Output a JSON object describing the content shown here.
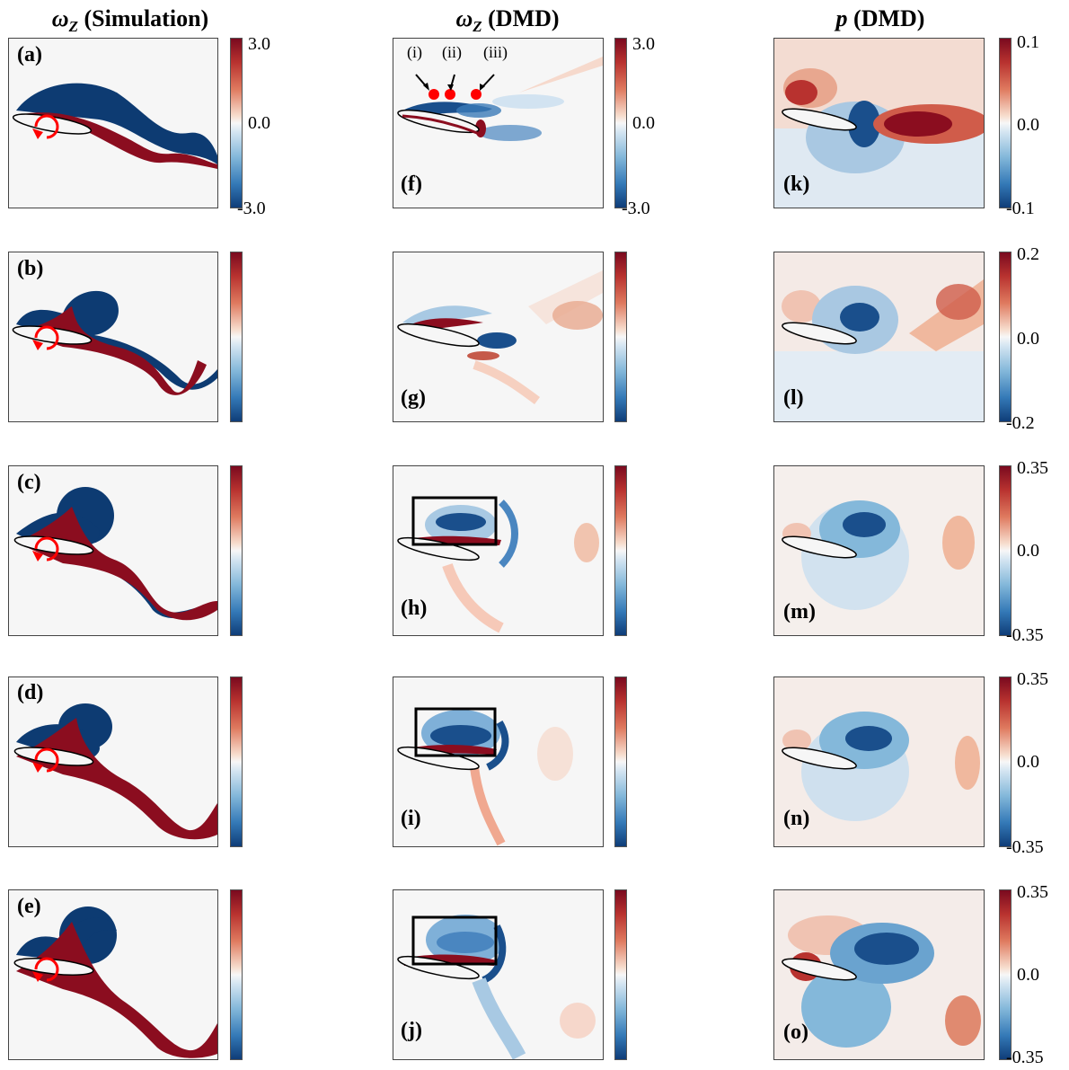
{
  "titles": {
    "col1": {
      "symbol": "ω",
      "sub": "Z",
      "text": " (Simulation)"
    },
    "col2": {
      "symbol": "ω",
      "sub": "Z",
      "text": " (DMD)"
    },
    "col3": {
      "symbol": "p",
      "text": " (DMD)"
    }
  },
  "panel_labels": {
    "a": "(a)",
    "b": "(b)",
    "c": "(c)",
    "d": "(d)",
    "e": "(e)",
    "f": "(f)",
    "g": "(g)",
    "h": "(h)",
    "i": "(i)",
    "j": "(j)",
    "k": "(k)",
    "l": "(l)",
    "m": "(m)",
    "n": "(n)",
    "o": "(o)"
  },
  "point_labels": [
    "(i)",
    "(ii)",
    "(iii)"
  ],
  "colorbar_ticks": {
    "col1_row1": {
      "top": "3.0",
      "mid": "0.0",
      "bot": "-3.0"
    },
    "col2_row1": {
      "top": "3.0",
      "mid": "0.0",
      "bot": "-3.0"
    },
    "col3_row1": {
      "top": "0.1",
      "mid": "0.0",
      "bot": "-0.1"
    },
    "col3_row2": {
      "top": "0.2",
      "mid": "0.0",
      "bot": "-0.2"
    },
    "col3_row3": {
      "top": "0.35",
      "mid": "0.0",
      "bot": "-0.35"
    },
    "col3_row4": {
      "top": "0.35",
      "mid": "0.0",
      "bot": "-0.35"
    },
    "col3_row5": {
      "top": "0.35",
      "mid": "0.0",
      "bot": "-0.35"
    }
  },
  "colors": {
    "red": "#8b0d1f",
    "blue": "#0d3b72",
    "marker": "#ff0000",
    "background": "#f6f6f6"
  }
}
